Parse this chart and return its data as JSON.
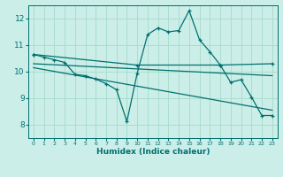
{
  "xlabel": "Humidex (Indice chaleur)",
  "bg_color": "#cceee8",
  "grid_color": "#aaddcc",
  "line_color": "#007070",
  "xlim": [
    -0.5,
    23.5
  ],
  "ylim": [
    7.5,
    12.5
  ],
  "yticks": [
    8,
    9,
    10,
    11,
    12
  ],
  "xticks": [
    0,
    1,
    2,
    3,
    4,
    5,
    6,
    7,
    8,
    9,
    10,
    11,
    12,
    13,
    14,
    15,
    16,
    17,
    18,
    19,
    20,
    21,
    22,
    23
  ],
  "series1_x": [
    0,
    1,
    2,
    3,
    4,
    5,
    6,
    7,
    8,
    9,
    10,
    11,
    12,
    13,
    14,
    15,
    16,
    17,
    18,
    19,
    20,
    21,
    22,
    23
  ],
  "series1_y": [
    10.65,
    10.55,
    10.45,
    10.35,
    9.9,
    9.85,
    9.72,
    9.55,
    9.32,
    8.12,
    9.95,
    11.4,
    11.65,
    11.5,
    11.55,
    12.3,
    11.2,
    10.75,
    10.25,
    9.6,
    9.7,
    9.05,
    8.35,
    8.35
  ],
  "series2_x": [
    0,
    10,
    18,
    23
  ],
  "series2_y": [
    10.65,
    10.25,
    10.25,
    10.3
  ],
  "series3_x": [
    0,
    23
  ],
  "series3_y": [
    10.3,
    9.85
  ],
  "series4_x": [
    0,
    23
  ],
  "series4_y": [
    10.15,
    8.55
  ],
  "xtick_fontsize": 4.5,
  "ytick_fontsize": 6.5,
  "xlabel_fontsize": 6.5
}
